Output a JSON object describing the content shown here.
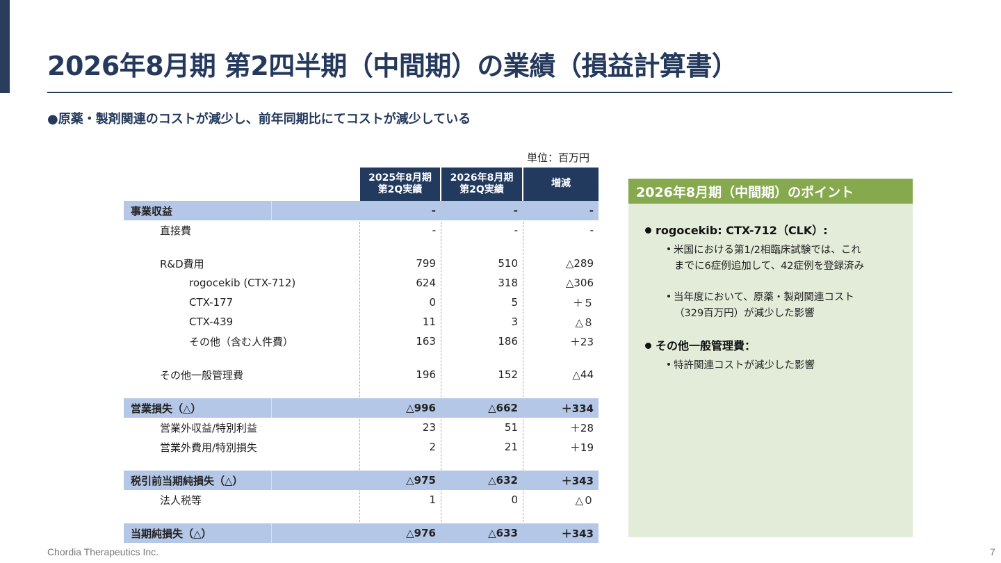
{
  "slide": {
    "title": "2026年8月期 第2四半期（中間期）の業績（損益計算書）",
    "subtitle": "●原薬・製剤関連のコストが減少し、前年同期比にてコストが減少している",
    "unit_label": "単位：百万円",
    "footer": "Chordia Therapeutics Inc.",
    "page_number": "7"
  },
  "table": {
    "headers": [
      "2025年8月期\n第2Q実績",
      "2026年8月期\n第2Q実績",
      "増減"
    ],
    "rows": [
      {
        "label": "事業収益",
        "v1": "-",
        "v2": "-",
        "v3": "-"
      },
      {
        "label": "直接費",
        "v1": "-",
        "v2": "-",
        "v3": "-"
      },
      {
        "label": "R&D費用",
        "v1": "799",
        "v2": "510",
        "v3": "△289"
      },
      {
        "label": "rogocekib (CTX-712)",
        "v1": "624",
        "v2": "318",
        "v3": "△306"
      },
      {
        "label": "CTX-177",
        "v1": "0",
        "v2": "5",
        "v3": "＋５"
      },
      {
        "label": "CTX-439",
        "v1": "11",
        "v2": "3",
        "v3": "△８"
      },
      {
        "label": "その他（含む人件費）",
        "v1": "163",
        "v2": "186",
        "v3": "＋23"
      },
      {
        "label": "その他一般管理費",
        "v1": "196",
        "v2": "152",
        "v3": "△44"
      },
      {
        "label": "営業損失（△）",
        "v1": "△996",
        "v2": "△662",
        "v3": "＋334"
      },
      {
        "label": "営業外収益/特別利益",
        "v1": "23",
        "v2": "51",
        "v3": "＋28"
      },
      {
        "label": "営業外費用/特別損失",
        "v1": "2",
        "v2": "21",
        "v3": "＋19"
      },
      {
        "label": "税引前当期純損失（△）",
        "v1": "△975",
        "v2": "△632",
        "v3": "＋343"
      },
      {
        "label": "法人税等",
        "v1": "1",
        "v2": "0",
        "v3": "△０"
      },
      {
        "label": "当期純損失（△）",
        "v1": "△976",
        "v2": "△633",
        "v3": "＋343"
      }
    ]
  },
  "points": {
    "heading": "2026年8月期（中間期）のポイント",
    "item1_title": "rogocekib: CTX-712（CLK）:",
    "item1_lines": [
      "米国における第1/2相臨床試験では、これ",
      "までに6症例追加して、42症例を登録済み",
      "当年度において、原薬・製剤関連コスト",
      "（329百万円）が減少した影響"
    ],
    "item2_title": "その他一般管理費：",
    "item2_lines": [
      "特許関連コストが減少した影響"
    ]
  }
}
